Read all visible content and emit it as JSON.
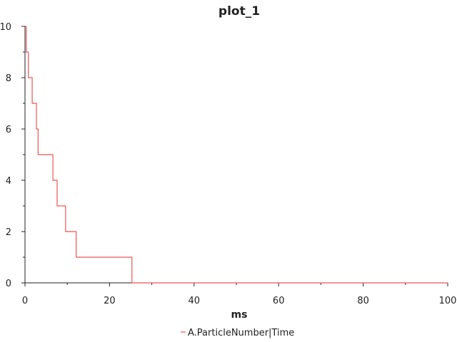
{
  "chart_data": {
    "type": "line",
    "title": "plot_1",
    "xlabel": "ms",
    "ylabel": "",
    "xlim": [
      0,
      100
    ],
    "ylim": [
      0,
      10
    ],
    "x_ticks": [
      0,
      20,
      40,
      60,
      80,
      100
    ],
    "y_ticks": [
      0,
      2,
      4,
      6,
      8,
      10
    ],
    "grid": false,
    "legend": "bottom-center",
    "series": [
      {
        "name": "A.ParticleNumber|Time",
        "color": "#ee5555",
        "step": "post",
        "x": [
          0.0,
          0.3,
          0.8,
          1.7,
          2.7,
          3.1,
          6.6,
          7.6,
          9.6,
          12.1,
          25.3,
          100
        ],
        "y": [
          10,
          9,
          8,
          7,
          6,
          5,
          4,
          3,
          2,
          1,
          0,
          0
        ]
      }
    ]
  }
}
